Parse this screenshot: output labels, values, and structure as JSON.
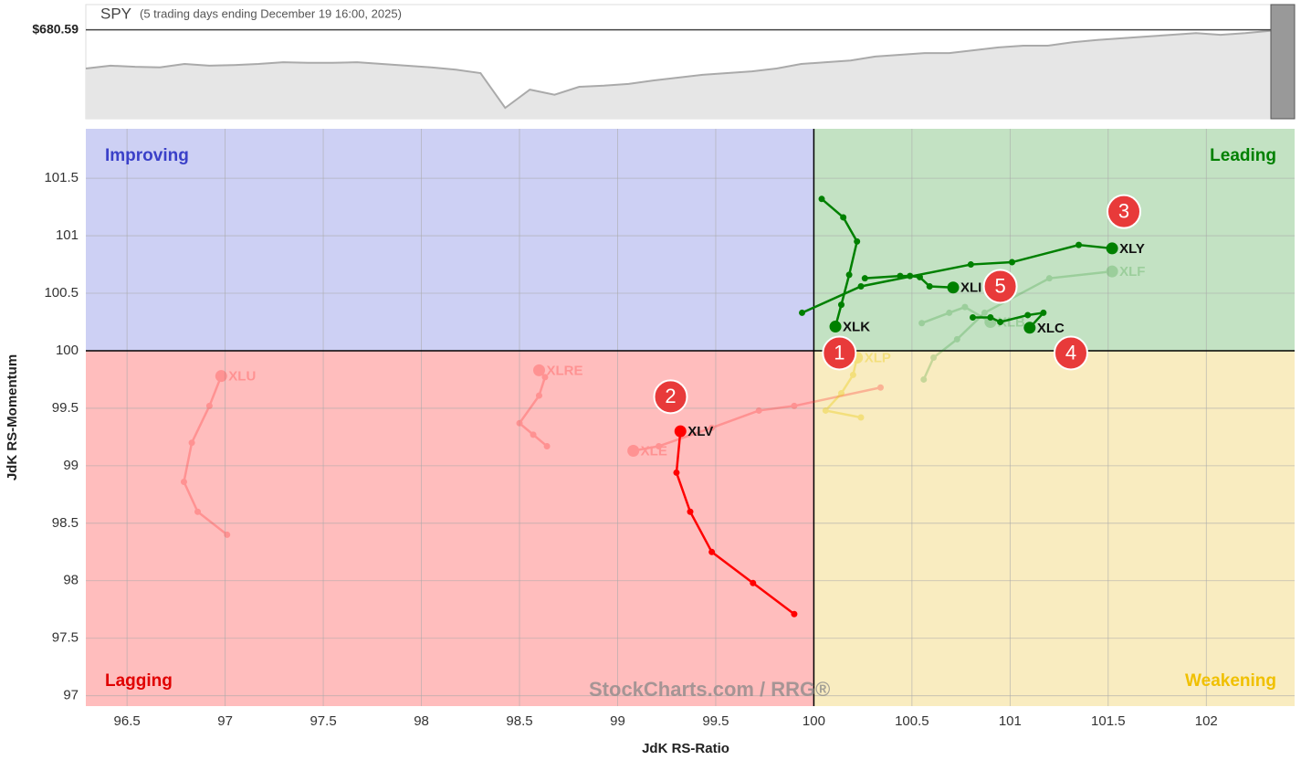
{
  "chart_data": [
    {
      "type": "area",
      "title": "SPY",
      "subtitle": "(5 trading days ending December 19 16:00, 2025)",
      "values": [
        673.8,
        674.3,
        674.1,
        674.0,
        674.6,
        674.3,
        674.4,
        674.6,
        674.9,
        674.8,
        674.8,
        674.9,
        674.6,
        674.3,
        674.0,
        673.6,
        673.0,
        666.9,
        670.1,
        669.2,
        670.6,
        670.8,
        671.1,
        671.7,
        672.2,
        672.7,
        673.0,
        673.3,
        673.8,
        674.6,
        674.9,
        675.2,
        675.9,
        676.2,
        676.5,
        676.5,
        677.0,
        677.5,
        677.8,
        677.8,
        678.4,
        678.8,
        679.1,
        679.4,
        679.7,
        680.0,
        679.7,
        680.0,
        680.4,
        680.59
      ],
      "ylim": [
        665,
        685
      ],
      "yticks": [
        {
          "value": 680.59,
          "label": "$680.59"
        }
      ],
      "color": "#aaaaaa",
      "fill": "#e6e6e6"
    },
    {
      "type": "scatter",
      "xlabel": "JdK RS-Ratio",
      "ylabel": "JdK RS-Momentum",
      "xlim": [
        96.29,
        102.45
      ],
      "ylim": [
        96.91,
        101.93
      ],
      "xticks": [
        96.5,
        97,
        97.5,
        98,
        98.5,
        99,
        99.5,
        100,
        100.5,
        101,
        101.5,
        102
      ],
      "yticks": [
        97,
        97.5,
        98,
        98.5,
        99,
        99.5,
        100,
        100.5,
        101,
        101.5
      ],
      "grid": true,
      "center": [
        100,
        100
      ],
      "quadrants": [
        {
          "label": "Improving",
          "color": "#3a40c8",
          "fill": "#cdd0f4"
        },
        {
          "label": "Leading",
          "color": "#008000",
          "fill": "#c3e2c3"
        },
        {
          "label": "Lagging",
          "color": "#e00000",
          "fill": "#ffbdbd"
        },
        {
          "label": "Weakening",
          "color": "#f0c000",
          "fill": "#f9ecc0"
        }
      ],
      "series": [
        {
          "name": "XLU",
          "color": "#ff3030",
          "opacity": 0.3,
          "x": [
            97.01,
            96.86,
            96.79,
            96.83,
            96.92,
            96.98
          ],
          "values": [
            98.4,
            98.6,
            98.86,
            99.2,
            99.52,
            99.78
          ]
        },
        {
          "name": "XLRE",
          "color": "#ff3030",
          "opacity": 0.3,
          "x": [
            98.64,
            98.57,
            98.5,
            98.6,
            98.63,
            98.6
          ],
          "values": [
            99.17,
            99.27,
            99.37,
            99.61,
            99.77,
            99.83
          ]
        },
        {
          "name": "XLE",
          "color": "#ff3030",
          "opacity": 0.3,
          "x": [
            100.34,
            99.9,
            99.72,
            99.48,
            99.21,
            99.08
          ],
          "values": [
            99.68,
            99.52,
            99.48,
            99.33,
            99.17,
            99.13
          ]
        },
        {
          "name": "XLP",
          "color": "#e8c800",
          "opacity": 0.35,
          "x": [
            100.24,
            100.06,
            100.14,
            100.2,
            100.22
          ],
          "values": [
            99.42,
            99.48,
            99.63,
            99.79,
            99.94
          ]
        },
        {
          "name": "XLF",
          "color": "#008000",
          "opacity": 0.2,
          "x": [
            100.56,
            100.61,
            100.73,
            100.87,
            101.2,
            101.52
          ],
          "values": [
            99.75,
            99.94,
            100.1,
            100.33,
            100.63,
            100.69
          ]
        },
        {
          "name": "XLB",
          "color": "#008000",
          "opacity": 0.2,
          "x": [
            100.55,
            100.69,
            100.77,
            100.9
          ],
          "values": [
            100.24,
            100.33,
            100.38,
            100.25
          ]
        },
        {
          "name": "XLK",
          "color": "#008000",
          "opacity": 1,
          "x": [
            100.04,
            100.15,
            100.22,
            100.18,
            100.14,
            100.11
          ],
          "values": [
            101.32,
            101.16,
            100.95,
            100.66,
            100.4,
            100.21
          ]
        },
        {
          "name": "XLY",
          "color": "#008000",
          "opacity": 1,
          "x": [
            99.94,
            100.24,
            100.8,
            101.01,
            101.35,
            101.52
          ],
          "values": [
            100.33,
            100.56,
            100.75,
            100.77,
            100.92,
            100.89
          ]
        },
        {
          "name": "XLI",
          "color": "#008000",
          "opacity": 1,
          "x": [
            100.26,
            100.44,
            100.49,
            100.54,
            100.59,
            100.71
          ],
          "values": [
            100.63,
            100.65,
            100.65,
            100.64,
            100.56,
            100.55
          ]
        },
        {
          "name": "XLC",
          "color": "#008000",
          "opacity": 1,
          "x": [
            100.81,
            100.9,
            100.95,
            101.09,
            101.17,
            101.1
          ],
          "values": [
            100.29,
            100.29,
            100.25,
            100.31,
            100.33,
            100.2
          ]
        },
        {
          "name": "XLV",
          "color": "#ff0000",
          "opacity": 1,
          "x": [
            99.9,
            99.69,
            99.48,
            99.37,
            99.3,
            99.32
          ],
          "values": [
            97.71,
            97.98,
            98.25,
            98.6,
            98.94,
            99.3
          ]
        }
      ],
      "annotations": [
        {
          "text": "1",
          "x": 100.13,
          "y": 99.98
        },
        {
          "text": "2",
          "x": 99.27,
          "y": 99.6
        },
        {
          "text": "3",
          "x": 101.58,
          "y": 101.21
        },
        {
          "text": "4",
          "x": 101.31,
          "y": 99.98
        },
        {
          "text": "5",
          "x": 100.95,
          "y": 100.56
        }
      ],
      "watermark": "StockCharts.com / RRG®"
    }
  ]
}
